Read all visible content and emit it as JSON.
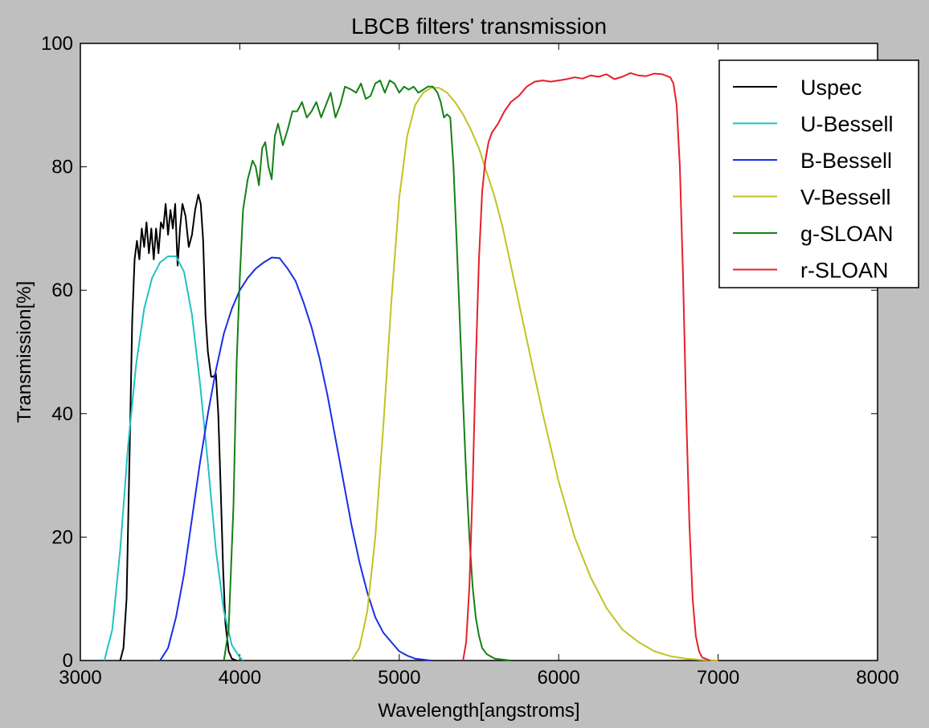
{
  "chart_data": {
    "type": "line",
    "title": "LBCB filters' transmission",
    "xlabel": "Wavelength[angstroms]",
    "ylabel": "Transmission[%]",
    "xlim": [
      3000,
      8000
    ],
    "ylim": [
      0,
      100
    ],
    "xticks": [
      "3000",
      "4000",
      "5000",
      "6000",
      "7000",
      "8000"
    ],
    "yticks": [
      "0",
      "20",
      "40",
      "60",
      "80",
      "100"
    ],
    "grid": false,
    "legend_position": "top-right",
    "series": [
      {
        "name": "Uspec",
        "color": "#000000",
        "points": [
          [
            3250,
            0
          ],
          [
            3270,
            2
          ],
          [
            3290,
            10
          ],
          [
            3310,
            35
          ],
          [
            3325,
            55
          ],
          [
            3340,
            65
          ],
          [
            3355,
            68
          ],
          [
            3370,
            65
          ],
          [
            3385,
            70
          ],
          [
            3400,
            67
          ],
          [
            3415,
            71
          ],
          [
            3430,
            66
          ],
          [
            3445,
            70
          ],
          [
            3460,
            65
          ],
          [
            3475,
            70
          ],
          [
            3490,
            66
          ],
          [
            3505,
            71
          ],
          [
            3520,
            70
          ],
          [
            3535,
            74
          ],
          [
            3550,
            69
          ],
          [
            3565,
            73
          ],
          [
            3580,
            70
          ],
          [
            3595,
            74
          ],
          [
            3610,
            64
          ],
          [
            3625,
            70
          ],
          [
            3640,
            74
          ],
          [
            3660,
            72
          ],
          [
            3680,
            67
          ],
          [
            3700,
            69
          ],
          [
            3720,
            73
          ],
          [
            3740,
            75.5
          ],
          [
            3755,
            74
          ],
          [
            3770,
            68
          ],
          [
            3785,
            56
          ],
          [
            3800,
            50
          ],
          [
            3820,
            46
          ],
          [
            3835,
            46
          ],
          [
            3850,
            46.5
          ],
          [
            3865,
            40
          ],
          [
            3880,
            28
          ],
          [
            3895,
            15
          ],
          [
            3910,
            6
          ],
          [
            3930,
            1.5
          ],
          [
            3950,
            0.3
          ],
          [
            3980,
            0
          ]
        ]
      },
      {
        "name": "U-Bessell",
        "color": "#22c1c1",
        "points": [
          [
            3150,
            0
          ],
          [
            3200,
            5
          ],
          [
            3250,
            18
          ],
          [
            3300,
            35
          ],
          [
            3350,
            48
          ],
          [
            3400,
            57
          ],
          [
            3450,
            62
          ],
          [
            3500,
            64.5
          ],
          [
            3550,
            65.5
          ],
          [
            3600,
            65.5
          ],
          [
            3650,
            63
          ],
          [
            3700,
            56
          ],
          [
            3750,
            45
          ],
          [
            3800,
            32
          ],
          [
            3850,
            18
          ],
          [
            3900,
            8
          ],
          [
            3950,
            2.5
          ],
          [
            4000,
            0.5
          ],
          [
            4020,
            0
          ]
        ]
      },
      {
        "name": "B-Bessell",
        "color": "#1a2ee6",
        "points": [
          [
            3500,
            0
          ],
          [
            3550,
            2
          ],
          [
            3600,
            7
          ],
          [
            3650,
            14
          ],
          [
            3700,
            23
          ],
          [
            3750,
            32
          ],
          [
            3800,
            40
          ],
          [
            3850,
            47
          ],
          [
            3900,
            53
          ],
          [
            3950,
            57
          ],
          [
            4000,
            60
          ],
          [
            4050,
            62
          ],
          [
            4100,
            63.5
          ],
          [
            4150,
            64.5
          ],
          [
            4200,
            65.3
          ],
          [
            4250,
            65.2
          ],
          [
            4300,
            63.5
          ],
          [
            4350,
            61.5
          ],
          [
            4400,
            58
          ],
          [
            4450,
            54
          ],
          [
            4500,
            49
          ],
          [
            4550,
            43
          ],
          [
            4600,
            36
          ],
          [
            4650,
            29
          ],
          [
            4700,
            22
          ],
          [
            4750,
            16
          ],
          [
            4800,
            11
          ],
          [
            4850,
            7
          ],
          [
            4900,
            4.5
          ],
          [
            4950,
            3
          ],
          [
            5000,
            1.5
          ],
          [
            5050,
            0.8
          ],
          [
            5100,
            0.3
          ],
          [
            5200,
            0
          ]
        ]
      },
      {
        "name": "V-Bessell",
        "color": "#c2c224",
        "points": [
          [
            4700,
            0
          ],
          [
            4750,
            2
          ],
          [
            4800,
            8
          ],
          [
            4850,
            20
          ],
          [
            4900,
            38
          ],
          [
            4950,
            58
          ],
          [
            5000,
            75
          ],
          [
            5050,
            85
          ],
          [
            5100,
            90
          ],
          [
            5150,
            92
          ],
          [
            5200,
            92.8
          ],
          [
            5250,
            92.8
          ],
          [
            5300,
            92
          ],
          [
            5350,
            90.5
          ],
          [
            5400,
            88.5
          ],
          [
            5450,
            86
          ],
          [
            5500,
            83
          ],
          [
            5550,
            79
          ],
          [
            5600,
            75
          ],
          [
            5650,
            70
          ],
          [
            5700,
            64
          ],
          [
            5750,
            58
          ],
          [
            5800,
            52
          ],
          [
            5850,
            46
          ],
          [
            5900,
            40
          ],
          [
            5950,
            34.5
          ],
          [
            6000,
            29
          ],
          [
            6100,
            20
          ],
          [
            6200,
            13.5
          ],
          [
            6300,
            8.5
          ],
          [
            6400,
            5
          ],
          [
            6500,
            3
          ],
          [
            6600,
            1.5
          ],
          [
            6700,
            0.7
          ],
          [
            6800,
            0.3
          ],
          [
            6900,
            0.1
          ],
          [
            7000,
            0
          ]
        ]
      },
      {
        "name": "g-SLOAN",
        "color": "#158015",
        "points": [
          [
            3900,
            0
          ],
          [
            3930,
            5
          ],
          [
            3960,
            25
          ],
          [
            3980,
            48
          ],
          [
            4000,
            62
          ],
          [
            4020,
            73
          ],
          [
            4050,
            78
          ],
          [
            4080,
            81
          ],
          [
            4100,
            80
          ],
          [
            4120,
            77
          ],
          [
            4140,
            83
          ],
          [
            4160,
            84
          ],
          [
            4180,
            80
          ],
          [
            4200,
            78
          ],
          [
            4220,
            85
          ],
          [
            4240,
            87
          ],
          [
            4270,
            83.5
          ],
          [
            4300,
            86
          ],
          [
            4330,
            89
          ],
          [
            4360,
            89
          ],
          [
            4390,
            90.5
          ],
          [
            4420,
            88
          ],
          [
            4450,
            89
          ],
          [
            4480,
            90.5
          ],
          [
            4510,
            88
          ],
          [
            4540,
            90
          ],
          [
            4570,
            92
          ],
          [
            4600,
            88
          ],
          [
            4630,
            90
          ],
          [
            4660,
            93
          ],
          [
            4700,
            92.5
          ],
          [
            4730,
            92
          ],
          [
            4760,
            93.5
          ],
          [
            4790,
            91
          ],
          [
            4820,
            91.5
          ],
          [
            4850,
            93.5
          ],
          [
            4880,
            94
          ],
          [
            4910,
            92
          ],
          [
            4940,
            94
          ],
          [
            4970,
            93.5
          ],
          [
            5000,
            92
          ],
          [
            5030,
            93
          ],
          [
            5060,
            92.5
          ],
          [
            5090,
            93
          ],
          [
            5120,
            92
          ],
          [
            5150,
            92.5
          ],
          [
            5180,
            93
          ],
          [
            5210,
            93
          ],
          [
            5240,
            92
          ],
          [
            5260,
            90.5
          ],
          [
            5280,
            88
          ],
          [
            5300,
            88.5
          ],
          [
            5320,
            88
          ],
          [
            5340,
            80
          ],
          [
            5360,
            68
          ],
          [
            5380,
            55
          ],
          [
            5400,
            42
          ],
          [
            5420,
            30
          ],
          [
            5440,
            20
          ],
          [
            5460,
            12
          ],
          [
            5480,
            7
          ],
          [
            5500,
            4
          ],
          [
            5520,
            2
          ],
          [
            5550,
            1
          ],
          [
            5600,
            0.3
          ],
          [
            5700,
            0
          ]
        ]
      },
      {
        "name": "r-SLOAN",
        "color": "#e6202c",
        "points": [
          [
            5400,
            0
          ],
          [
            5420,
            3
          ],
          [
            5440,
            12
          ],
          [
            5460,
            28
          ],
          [
            5480,
            48
          ],
          [
            5500,
            65
          ],
          [
            5520,
            76
          ],
          [
            5540,
            81
          ],
          [
            5560,
            84
          ],
          [
            5580,
            85.5
          ],
          [
            5620,
            87
          ],
          [
            5660,
            89
          ],
          [
            5700,
            90.5
          ],
          [
            5750,
            91.5
          ],
          [
            5800,
            93
          ],
          [
            5850,
            93.8
          ],
          [
            5900,
            94
          ],
          [
            5950,
            93.8
          ],
          [
            6000,
            94
          ],
          [
            6050,
            94.2
          ],
          [
            6100,
            94.5
          ],
          [
            6150,
            94.3
          ],
          [
            6200,
            94.8
          ],
          [
            6250,
            94.6
          ],
          [
            6300,
            95
          ],
          [
            6350,
            94.2
          ],
          [
            6400,
            94.6
          ],
          [
            6450,
            95.2
          ],
          [
            6500,
            94.8
          ],
          [
            6550,
            94.7
          ],
          [
            6600,
            95.1
          ],
          [
            6650,
            95
          ],
          [
            6700,
            94.5
          ],
          [
            6720,
            93.5
          ],
          [
            6740,
            90
          ],
          [
            6760,
            80
          ],
          [
            6780,
            62
          ],
          [
            6800,
            40
          ],
          [
            6820,
            22
          ],
          [
            6840,
            10
          ],
          [
            6860,
            4
          ],
          [
            6880,
            1.5
          ],
          [
            6900,
            0.5
          ],
          [
            6950,
            0
          ]
        ]
      }
    ]
  }
}
